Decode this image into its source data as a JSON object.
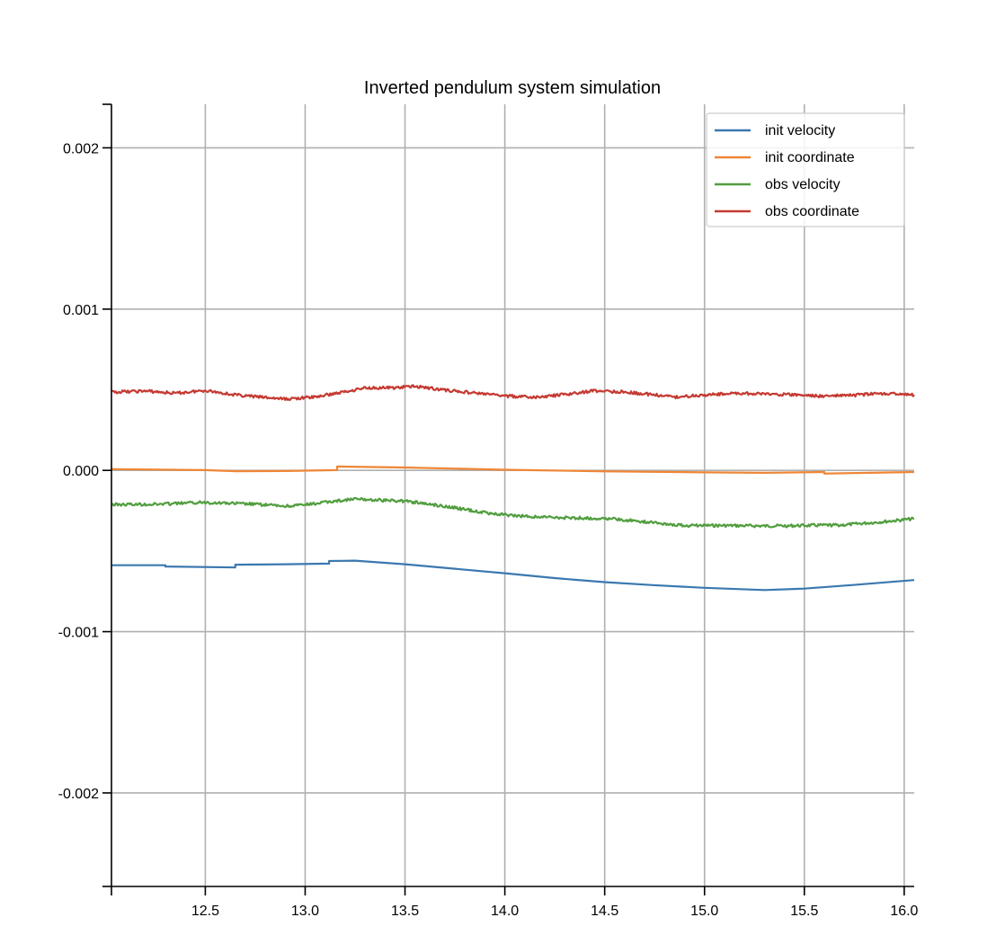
{
  "chart_data": {
    "type": "line",
    "title": "Inverted pendulum system simulation",
    "xlabel": "",
    "ylabel": "",
    "xlim": [
      12.03,
      16.05
    ],
    "ylim": [
      -0.00258,
      0.00227
    ],
    "grid": true,
    "legend_position": "top-right",
    "x_ticks": [
      12.5,
      13.0,
      13.5,
      14.0,
      14.5,
      15.0,
      15.5,
      16.0
    ],
    "x_tick_labels": [
      "12.5",
      "13.0",
      "13.5",
      "14.0",
      "14.5",
      "15.0",
      "15.5",
      "16.0"
    ],
    "y_ticks": [
      0.002,
      0.001,
      0.0,
      -0.001,
      -0.002
    ],
    "y_tick_labels": [
      "0.002",
      "0.001",
      "0.000",
      "-0.001",
      "-0.002"
    ],
    "series": [
      {
        "name": "init velocity",
        "color": "#3a78b0",
        "style": "step",
        "x": [
          12.03,
          12.3,
          12.3,
          12.65,
          12.65,
          12.9,
          13.12,
          13.12,
          13.25,
          13.5,
          13.75,
          14.0,
          14.25,
          14.5,
          14.75,
          15.0,
          15.15,
          15.3,
          15.5,
          15.75,
          16.0,
          16.05
        ],
        "y": [
          -0.000588,
          -0.000588,
          -0.000596,
          -0.000602,
          -0.000585,
          -0.000582,
          -0.000578,
          -0.000562,
          -0.00056,
          -0.000582,
          -0.00061,
          -0.000638,
          -0.000668,
          -0.000693,
          -0.000712,
          -0.000728,
          -0.000735,
          -0.000742,
          -0.000733,
          -0.00071,
          -0.000685,
          -0.00068
        ]
      },
      {
        "name": "init coordinate",
        "color": "#ef8636",
        "style": "step",
        "x": [
          12.03,
          12.5,
          12.65,
          12.9,
          13.16,
          13.16,
          13.5,
          14.0,
          14.5,
          15.0,
          15.3,
          15.6,
          15.6,
          16.05
        ],
        "y": [
          8e-06,
          2e-06,
          -5e-06,
          -4e-06,
          2e-06,
          2.4e-05,
          1.8e-05,
          4e-06,
          -6e-06,
          -1.2e-05,
          -1.5e-05,
          -1e-05,
          -2e-05,
          -1e-05
        ]
      },
      {
        "name": "obs velocity",
        "color": "#519e3e",
        "style": "noisy",
        "x": [
          12.03,
          12.25,
          12.5,
          12.75,
          12.9,
          13.0,
          13.15,
          13.25,
          13.4,
          13.5,
          13.7,
          13.9,
          14.05,
          14.25,
          14.5,
          14.7,
          14.9,
          15.1,
          15.3,
          15.5,
          15.7,
          15.9,
          16.05
        ],
        "y": [
          -0.000212,
          -0.00021,
          -0.000198,
          -0.00021,
          -0.000222,
          -0.000214,
          -0.00019,
          -0.000178,
          -0.000186,
          -0.00019,
          -0.000222,
          -0.000262,
          -0.000282,
          -0.000292,
          -0.000298,
          -0.000318,
          -0.000342,
          -0.000342,
          -0.000345,
          -0.000342,
          -0.000338,
          -0.000318,
          -0.0003
        ]
      },
      {
        "name": "obs coordinate",
        "color": "#c53a32",
        "style": "noisy",
        "x": [
          12.03,
          12.2,
          12.35,
          12.5,
          12.65,
          12.8,
          12.9,
          13.05,
          13.2,
          13.3,
          13.45,
          13.55,
          13.7,
          13.85,
          14.0,
          14.15,
          14.3,
          14.45,
          14.6,
          14.75,
          14.85,
          15.0,
          15.15,
          15.3,
          15.45,
          15.6,
          15.75,
          15.9,
          16.05
        ],
        "y": [
          0.000485,
          0.000492,
          0.000478,
          0.000496,
          0.000468,
          0.000452,
          0.000442,
          0.000455,
          0.000488,
          0.000512,
          0.000512,
          0.000522,
          0.000498,
          0.00048,
          0.000462,
          0.000452,
          0.00047,
          0.000494,
          0.000486,
          0.000468,
          0.000454,
          0.000468,
          0.000478,
          0.000474,
          0.000468,
          0.00046,
          0.000466,
          0.000478,
          0.000468
        ]
      }
    ]
  }
}
